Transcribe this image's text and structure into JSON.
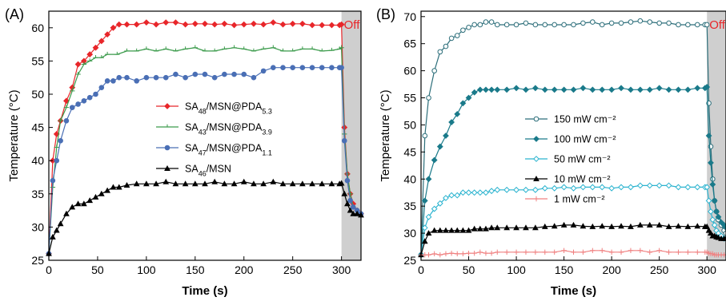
{
  "chart_data": [
    {
      "panel_label": "(A)",
      "type": "line",
      "xlabel": "Time (s)",
      "ylabel": "Temperature (°C)",
      "xlim": [
        0,
        320
      ],
      "ylim": [
        25,
        62.5
      ],
      "xticks": [
        0,
        50,
        100,
        150,
        200,
        250,
        300
      ],
      "yticks": [
        25,
        30,
        35,
        40,
        45,
        50,
        55,
        60
      ],
      "off_region": {
        "x_start": 300,
        "x_end": 320,
        "label": "Off"
      },
      "legend": "center",
      "series": [
        {
          "name": "SA48/MSN@PDA5.3",
          "color": "#e8262a",
          "marker": "diamond",
          "x": [
            0,
            4,
            8,
            12,
            18,
            24,
            30,
            36,
            42,
            48,
            54,
            60,
            66,
            72,
            80,
            90,
            100,
            110,
            120,
            130,
            140,
            150,
            160,
            170,
            180,
            190,
            200,
            210,
            220,
            230,
            240,
            250,
            260,
            270,
            280,
            290,
            298,
            300,
            303,
            306,
            309,
            312,
            316,
            320
          ],
          "y": [
            26,
            40,
            44,
            46,
            49,
            51,
            54.5,
            55,
            56,
            57,
            58,
            59,
            60,
            60.5,
            60.5,
            60.5,
            60.8,
            60.5,
            60.8,
            60.8,
            60.5,
            60.6,
            60.6,
            60.5,
            60.6,
            60.4,
            60.5,
            60.6,
            60.5,
            60.8,
            60.5,
            60.6,
            60.6,
            60.4,
            60.4,
            60.4,
            60.4,
            60.5,
            45,
            38,
            35,
            33.5,
            32.5,
            32
          ]
        },
        {
          "name": "SA43/MSN@PDA3.9",
          "color": "#3a9a4a",
          "marker": "tick",
          "x": [
            0,
            4,
            8,
            12,
            18,
            24,
            30,
            36,
            42,
            48,
            54,
            60,
            70,
            80,
            90,
            100,
            110,
            120,
            130,
            140,
            150,
            160,
            170,
            180,
            190,
            200,
            210,
            220,
            230,
            240,
            250,
            260,
            270,
            280,
            290,
            298,
            300,
            303,
            306,
            309,
            312,
            316,
            320
          ],
          "y": [
            26,
            36,
            42,
            46,
            48,
            50.5,
            53,
            54.5,
            55,
            55.5,
            55.5,
            56,
            56,
            56.5,
            56.5,
            56.8,
            56.5,
            56.8,
            56.5,
            56.8,
            57,
            56.5,
            56.5,
            56.8,
            57,
            56.8,
            56.5,
            56.8,
            57,
            56.5,
            56.5,
            56.8,
            56.8,
            56.5,
            56.6,
            56.8,
            57,
            44,
            38,
            35,
            33,
            32.5,
            32
          ]
        },
        {
          "name": "SA47/MSN@PDA1.1",
          "color": "#4a6fb5",
          "marker": "circle",
          "x": [
            0,
            4,
            8,
            12,
            18,
            24,
            30,
            36,
            42,
            48,
            54,
            60,
            66,
            72,
            80,
            90,
            100,
            110,
            120,
            130,
            140,
            150,
            160,
            170,
            180,
            190,
            200,
            210,
            220,
            230,
            240,
            250,
            260,
            270,
            280,
            290,
            298,
            300,
            303,
            306,
            309,
            312,
            316,
            320
          ],
          "y": [
            26,
            37,
            40,
            43,
            46,
            48,
            48.5,
            49,
            49.5,
            50,
            51,
            52,
            52,
            52.5,
            52.5,
            52,
            52.5,
            52.5,
            52.5,
            53,
            52.5,
            53,
            53,
            52.5,
            53,
            53,
            53,
            52.5,
            53.5,
            54,
            54,
            54,
            54,
            54,
            54,
            54,
            54,
            54,
            43,
            37,
            34,
            33,
            32.5,
            32
          ]
        },
        {
          "name": "SA46/MSN",
          "color": "#000000",
          "marker": "triangle",
          "x": [
            0,
            4,
            8,
            12,
            18,
            24,
            30,
            36,
            42,
            48,
            54,
            60,
            66,
            72,
            80,
            90,
            100,
            110,
            120,
            130,
            140,
            150,
            160,
            170,
            180,
            190,
            200,
            210,
            220,
            230,
            240,
            250,
            260,
            270,
            280,
            290,
            298,
            300,
            303,
            306,
            309,
            312,
            316,
            320
          ],
          "y": [
            26,
            28.5,
            29.5,
            30.5,
            32,
            33,
            33.5,
            33.5,
            34,
            34.5,
            35,
            35.5,
            36,
            36,
            36.3,
            36.5,
            36.5,
            36.5,
            36.8,
            36.5,
            36.5,
            36.5,
            36.5,
            36.8,
            36.5,
            36.5,
            36.8,
            36.5,
            36.5,
            36.8,
            36.5,
            36.5,
            36.5,
            36.5,
            36.5,
            36.5,
            36.5,
            36.6,
            35,
            33.5,
            32.5,
            32,
            32,
            31.8
          ]
        }
      ]
    },
    {
      "panel_label": "(B)",
      "type": "line",
      "xlabel": "Time (s)",
      "ylabel": "Temperature (°C)",
      "xlim": [
        0,
        320
      ],
      "ylim": [
        25,
        71
      ],
      "xticks": [
        0,
        50,
        100,
        150,
        200,
        250,
        300
      ],
      "yticks": [
        25,
        30,
        35,
        40,
        45,
        50,
        55,
        60,
        65,
        70
      ],
      "off_region": {
        "x_start": 300,
        "x_end": 320,
        "label": "Off"
      },
      "legend": "center",
      "series": [
        {
          "name": "150 mW cm⁻²",
          "color": "#2c6e7a",
          "marker": "open-circle",
          "x": [
            0,
            4,
            8,
            14,
            20,
            26,
            32,
            38,
            44,
            50,
            56,
            62,
            68,
            74,
            80,
            90,
            100,
            110,
            120,
            130,
            140,
            150,
            160,
            170,
            180,
            190,
            200,
            210,
            220,
            230,
            240,
            250,
            260,
            270,
            280,
            290,
            298,
            300,
            302,
            304,
            306,
            308,
            310,
            312,
            315,
            318,
            320
          ],
          "y": [
            26,
            48,
            55,
            60,
            63.5,
            64.5,
            66,
            66.5,
            67.5,
            68,
            68.5,
            68.5,
            69,
            69,
            68.5,
            68.5,
            68.5,
            68.8,
            68.5,
            68.5,
            68.5,
            68.5,
            68.5,
            68.8,
            69,
            68.5,
            68.8,
            68.8,
            69,
            69.2,
            69,
            68.8,
            68.8,
            68.5,
            68.5,
            68.5,
            68.5,
            68.5,
            54,
            46,
            40,
            36,
            34,
            32.5,
            31.5,
            30.5,
            30
          ]
        },
        {
          "name": "100 mW cm⁻²",
          "color": "#1a7a8a",
          "marker": "diamond",
          "x": [
            0,
            4,
            8,
            14,
            20,
            26,
            32,
            38,
            44,
            50,
            56,
            62,
            68,
            74,
            80,
            90,
            100,
            110,
            120,
            130,
            140,
            150,
            160,
            170,
            180,
            190,
            200,
            210,
            220,
            230,
            240,
            250,
            260,
            270,
            280,
            290,
            298,
            300,
            302,
            304,
            306,
            308,
            310,
            312,
            315,
            318,
            320
          ],
          "y": [
            26,
            36,
            40,
            43.5,
            46,
            48,
            50.5,
            52,
            54,
            55,
            56,
            56.5,
            56.5,
            56.5,
            56.5,
            56.5,
            56.8,
            56.5,
            56.8,
            56.5,
            56.5,
            56.5,
            56.5,
            56.8,
            56.5,
            56.5,
            56.5,
            56.8,
            56.5,
            56.5,
            56.5,
            56.8,
            56.5,
            56.5,
            56.5,
            56.8,
            56.8,
            57,
            48,
            43,
            39,
            36,
            34,
            33,
            32,
            31.5,
            31
          ]
        },
        {
          "name": "50 mW cm⁻²",
          "color": "#2ab3cf",
          "marker": "open-diamond",
          "x": [
            0,
            4,
            8,
            14,
            20,
            26,
            32,
            38,
            44,
            50,
            56,
            62,
            68,
            74,
            80,
            90,
            100,
            110,
            120,
            130,
            140,
            150,
            160,
            170,
            180,
            190,
            200,
            210,
            220,
            230,
            240,
            250,
            260,
            270,
            280,
            290,
            298,
            300,
            302,
            304,
            306,
            308,
            310,
            312,
            315,
            318,
            320
          ],
          "y": [
            26,
            31,
            33,
            34.5,
            35.5,
            36.5,
            37,
            37,
            37.5,
            37.5,
            37.5,
            37.5,
            37.5,
            37.8,
            38,
            38,
            38,
            38,
            38,
            38.3,
            38.3,
            38.5,
            38.3,
            38.5,
            38.5,
            38.5,
            38.3,
            38.5,
            38.5,
            38.8,
            38.8,
            38.8,
            38.8,
            38.5,
            38.5,
            38.5,
            38.5,
            38.5,
            36,
            34,
            32.5,
            31.5,
            30.5,
            30,
            29.5,
            29,
            29
          ]
        },
        {
          "name": "10 mW cm⁻²",
          "color": "#000000",
          "marker": "triangle",
          "x": [
            0,
            4,
            8,
            14,
            20,
            26,
            32,
            38,
            44,
            50,
            56,
            62,
            68,
            74,
            80,
            90,
            100,
            110,
            120,
            130,
            140,
            150,
            160,
            170,
            180,
            190,
            200,
            210,
            220,
            230,
            240,
            250,
            260,
            270,
            280,
            290,
            298,
            300,
            302,
            304,
            306,
            308,
            310,
            312,
            315,
            318,
            320
          ],
          "y": [
            26,
            28.5,
            30,
            30.5,
            30.5,
            30.5,
            30.5,
            30.5,
            30.5,
            30.5,
            30.8,
            30.8,
            30.8,
            31,
            31,
            31,
            31,
            31,
            31,
            31.2,
            31.3,
            31.5,
            31.5,
            31.3,
            31.2,
            31.3,
            31.2,
            31.3,
            31.2,
            31.5,
            31.5,
            31.5,
            31.2,
            31.3,
            31.2,
            31.3,
            31.2,
            31.2,
            30.5,
            30,
            29.5,
            29.5,
            29.3,
            29.2,
            29,
            29,
            29
          ]
        },
        {
          "name": "1 mW cm⁻²",
          "color": "#f08080",
          "marker": "cross",
          "x": [
            0,
            4,
            8,
            14,
            20,
            26,
            32,
            38,
            44,
            50,
            56,
            62,
            68,
            74,
            80,
            90,
            100,
            110,
            120,
            130,
            140,
            150,
            160,
            170,
            180,
            190,
            200,
            210,
            220,
            230,
            240,
            250,
            260,
            270,
            280,
            290,
            298,
            300,
            302,
            304,
            306,
            308,
            310,
            312,
            315,
            318,
            320
          ],
          "y": [
            26,
            26,
            26,
            26.2,
            26,
            26.2,
            26.3,
            26.2,
            26.2,
            26.3,
            26.3,
            26.5,
            26.3,
            26.3,
            26.5,
            26.5,
            26.5,
            26.5,
            26.5,
            26.5,
            26.5,
            26.8,
            26.5,
            26.5,
            26.8,
            26.8,
            26.5,
            26.5,
            26.8,
            26.8,
            26.5,
            26.8,
            26.5,
            26.5,
            26.5,
            26.5,
            26.5,
            26.5,
            26.3,
            26.2,
            26.2,
            26,
            26,
            26,
            26,
            26,
            26
          ]
        }
      ]
    }
  ]
}
